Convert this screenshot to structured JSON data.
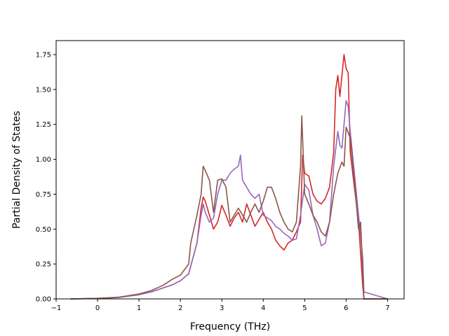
{
  "chart_data": {
    "type": "line",
    "title": "",
    "xlabel": "Frequency (THz)",
    "ylabel": "Partial Density of States",
    "xlim": [
      -1.0,
      7.4
    ],
    "ylim": [
      0.0,
      1.85
    ],
    "xticks": [
      -1,
      0,
      1,
      2,
      3,
      4,
      5,
      6,
      7
    ],
    "xtick_labels": [
      "−1",
      "0",
      "1",
      "2",
      "3",
      "4",
      "5",
      "6",
      "7"
    ],
    "yticks": [
      0.0,
      0.25,
      0.5,
      0.75,
      1.0,
      1.25,
      1.5,
      1.75
    ],
    "ytick_labels": [
      "0.00",
      "0.25",
      "0.50",
      "0.75",
      "1.00",
      "1.25",
      "1.50",
      "1.75"
    ],
    "grid": false,
    "legend": "none",
    "series": [
      {
        "color": "#d62728",
        "x": [
          -0.65,
          0.0,
          0.5,
          1.0,
          1.3,
          1.6,
          1.8,
          2.0,
          2.2,
          2.4,
          2.5,
          2.55,
          2.6,
          2.7,
          2.8,
          2.9,
          3.0,
          3.1,
          3.2,
          3.3,
          3.4,
          3.5,
          3.6,
          3.7,
          3.8,
          3.9,
          4.0,
          4.1,
          4.2,
          4.3,
          4.4,
          4.5,
          4.6,
          4.7,
          4.8,
          4.9,
          4.95,
          5.0,
          5.1,
          5.2,
          5.3,
          5.4,
          5.5,
          5.6,
          5.7,
          5.75,
          5.8,
          5.85,
          5.9,
          5.95,
          6.0,
          6.05,
          6.1,
          6.2,
          6.3,
          6.4,
          6.43,
          7.0
        ],
        "y": [
          0.0,
          0.003,
          0.01,
          0.03,
          0.05,
          0.08,
          0.1,
          0.13,
          0.18,
          0.4,
          0.65,
          0.73,
          0.7,
          0.6,
          0.5,
          0.55,
          0.67,
          0.6,
          0.52,
          0.58,
          0.62,
          0.55,
          0.68,
          0.6,
          0.52,
          0.57,
          0.62,
          0.55,
          0.5,
          0.42,
          0.38,
          0.35,
          0.4,
          0.42,
          0.48,
          0.55,
          1.03,
          0.9,
          0.88,
          0.75,
          0.7,
          0.68,
          0.72,
          0.8,
          1.05,
          1.5,
          1.6,
          1.45,
          1.6,
          1.75,
          1.65,
          1.62,
          1.05,
          0.8,
          0.55,
          0.1,
          0.0,
          0.0
        ]
      },
      {
        "color": "#9467bd",
        "x": [
          -0.65,
          0.0,
          0.5,
          1.0,
          1.3,
          1.6,
          1.8,
          2.0,
          2.2,
          2.4,
          2.5,
          2.55,
          2.6,
          2.7,
          2.8,
          2.9,
          3.0,
          3.1,
          3.2,
          3.3,
          3.4,
          3.45,
          3.5,
          3.6,
          3.7,
          3.8,
          3.9,
          4.0,
          4.1,
          4.2,
          4.3,
          4.4,
          4.5,
          4.6,
          4.7,
          4.8,
          4.9,
          5.0,
          5.1,
          5.2,
          5.3,
          5.4,
          5.5,
          5.6,
          5.7,
          5.8,
          5.85,
          5.9,
          5.95,
          6.0,
          6.05,
          6.1,
          6.2,
          6.3,
          6.4,
          6.43,
          7.0
        ],
        "y": [
          0.0,
          0.003,
          0.01,
          0.03,
          0.05,
          0.08,
          0.1,
          0.13,
          0.18,
          0.4,
          0.6,
          0.68,
          0.62,
          0.55,
          0.58,
          0.75,
          0.85,
          0.85,
          0.9,
          0.93,
          0.95,
          1.03,
          0.85,
          0.8,
          0.75,
          0.72,
          0.75,
          0.6,
          0.58,
          0.56,
          0.52,
          0.5,
          0.47,
          0.45,
          0.42,
          0.43,
          0.6,
          0.82,
          0.78,
          0.6,
          0.5,
          0.38,
          0.4,
          0.55,
          0.95,
          1.2,
          1.1,
          1.08,
          1.25,
          1.42,
          1.38,
          1.2,
          0.9,
          0.6,
          0.3,
          0.05,
          0.0
        ]
      },
      {
        "color": "#8c564b",
        "x": [
          -0.65,
          0.0,
          0.5,
          1.0,
          1.3,
          1.6,
          1.8,
          2.0,
          2.2,
          2.25,
          2.4,
          2.5,
          2.55,
          2.6,
          2.7,
          2.8,
          2.9,
          3.0,
          3.1,
          3.2,
          3.3,
          3.4,
          3.5,
          3.6,
          3.7,
          3.8,
          3.9,
          4.0,
          4.1,
          4.2,
          4.3,
          4.4,
          4.5,
          4.6,
          4.7,
          4.8,
          4.9,
          4.93,
          5.0,
          5.1,
          5.2,
          5.3,
          5.4,
          5.5,
          5.6,
          5.7,
          5.8,
          5.9,
          5.95,
          6.0,
          6.1,
          6.2,
          6.3,
          6.35,
          6.43,
          7.0
        ],
        "y": [
          0.0,
          0.004,
          0.012,
          0.035,
          0.06,
          0.1,
          0.14,
          0.17,
          0.25,
          0.4,
          0.6,
          0.75,
          0.95,
          0.92,
          0.85,
          0.62,
          0.85,
          0.86,
          0.8,
          0.55,
          0.6,
          0.65,
          0.6,
          0.55,
          0.62,
          0.68,
          0.62,
          0.7,
          0.8,
          0.8,
          0.72,
          0.62,
          0.55,
          0.5,
          0.48,
          0.55,
          0.95,
          1.31,
          0.75,
          0.68,
          0.6,
          0.55,
          0.48,
          0.45,
          0.55,
          0.75,
          0.9,
          0.98,
          0.95,
          1.23,
          1.15,
          0.85,
          0.5,
          0.55,
          0.0,
          0.0
        ]
      }
    ]
  }
}
